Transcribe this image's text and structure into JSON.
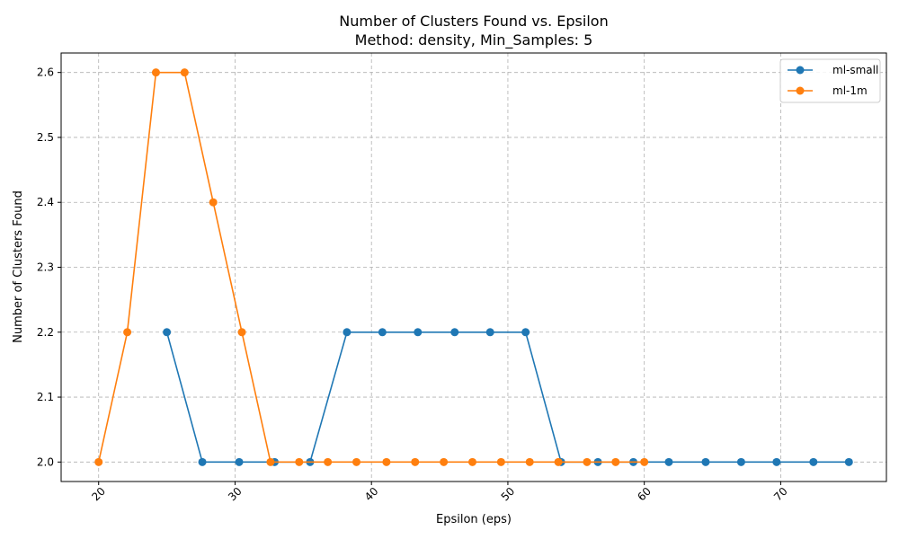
{
  "chart_data": {
    "type": "line",
    "title": "Number of Clusters Found vs. Epsilon",
    "subtitle": "Method: density, Min_Samples: 5",
    "xlabel": "Epsilon (eps)",
    "ylabel": "Number of Clusters Found",
    "xlim": [
      17.25,
      77.75
    ],
    "ylim": [
      1.97,
      2.63
    ],
    "xticks": [
      20,
      30,
      40,
      50,
      60,
      70
    ],
    "yticks": [
      2.0,
      2.1,
      2.2,
      2.3,
      2.4,
      2.5,
      2.6
    ],
    "ytick_labels": [
      "2.0",
      "2.1",
      "2.2",
      "2.3",
      "2.4",
      "2.5",
      "2.6"
    ],
    "grid": true,
    "legend_position": "top-right",
    "series": [
      {
        "name": "ml-small",
        "color": "#1f77b4",
        "x": [
          25,
          27.6,
          30.3,
          32.9,
          35.5,
          38.2,
          40.8,
          43.4,
          46.1,
          48.7,
          51.3,
          53.9,
          56.6,
          59.2,
          61.8,
          64.5,
          67.1,
          69.7,
          72.4,
          75
        ],
        "y": [
          2.2,
          2.0,
          2.0,
          2.0,
          2.0,
          2.2,
          2.2,
          2.2,
          2.2,
          2.2,
          2.2,
          2.0,
          2.0,
          2.0,
          2.0,
          2.0,
          2.0,
          2.0,
          2.0,
          2.0
        ]
      },
      {
        "name": "ml-1m",
        "color": "#ff7f0e",
        "x": [
          20,
          22.1,
          24.2,
          26.3,
          28.4,
          30.5,
          32.6,
          34.7,
          36.8,
          38.9,
          41.1,
          43.2,
          45.3,
          47.4,
          49.5,
          51.6,
          53.7,
          55.8,
          57.9,
          60
        ],
        "y": [
          2.0,
          2.2,
          2.6,
          2.6,
          2.4,
          2.2,
          2.0,
          2.0,
          2.0,
          2.0,
          2.0,
          2.0,
          2.0,
          2.0,
          2.0,
          2.0,
          2.0,
          2.0,
          2.0,
          2.0
        ]
      }
    ]
  }
}
